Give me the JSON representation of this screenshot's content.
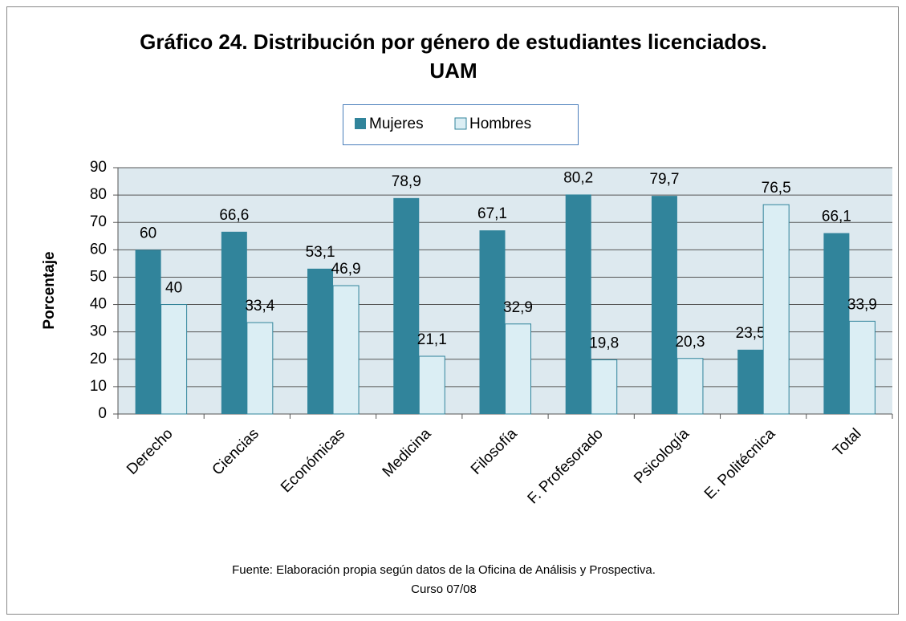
{
  "chart_data": {
    "type": "bar",
    "title": [
      "Gráfico 24. Distribución por género de estudiantes licenciados.",
      "UAM"
    ],
    "ylabel": "Porcentaje",
    "source": [
      "Fuente: Elaboración propia según datos de la Oficina de Análisis y Prospectiva.",
      "Curso 07/08"
    ],
    "categories": [
      "Derecho",
      "Ciencias",
      "Económicas",
      "Medicina",
      "Filosofía",
      "F. Profesorado",
      "Psicología",
      "E. Politécnica",
      "Total"
    ],
    "series": [
      {
        "name": "Mujeres",
        "color": "#31849b",
        "values": [
          60,
          66.6,
          53.1,
          78.9,
          67.1,
          80.2,
          79.7,
          23.5,
          66.1
        ],
        "value_labels": [
          "60",
          "66,6",
          "53,1",
          "78,9",
          "67,1",
          "80,2",
          "79,7",
          "23,5",
          "66,1"
        ]
      },
      {
        "name": "Hombres",
        "color": "#dbeef4",
        "values": [
          40,
          33.4,
          46.9,
          21.1,
          32.9,
          19.8,
          20.3,
          76.5,
          33.9
        ],
        "value_labels": [
          "40",
          "33,4",
          "46,9",
          "21,1",
          "32,9",
          "19,8",
          "20,3",
          "76,5",
          "33,9"
        ]
      }
    ],
    "ylim": [
      0,
      90
    ],
    "yticks": [
      0,
      10,
      20,
      30,
      40,
      50,
      60,
      70,
      80,
      90
    ],
    "grid": true,
    "legend": "top"
  }
}
